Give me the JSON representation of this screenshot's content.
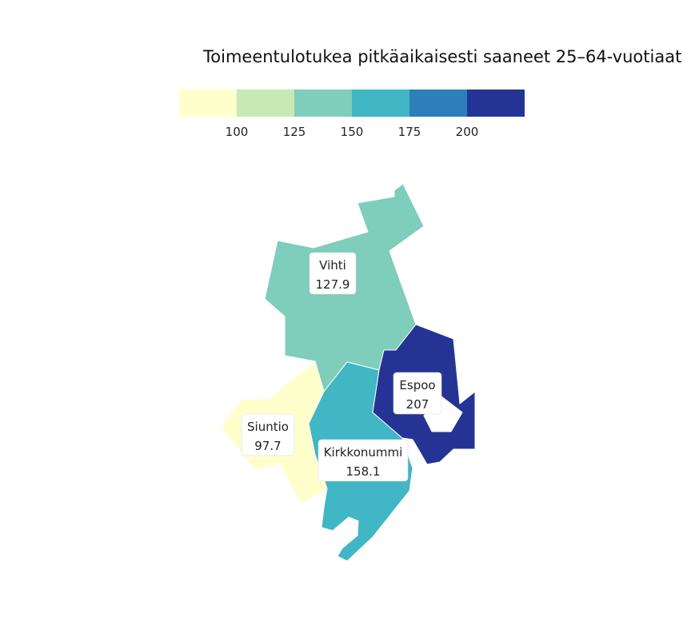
{
  "title": "Toimeentulotukea pitkäaikaisesti saaneet 25–64-vuotiaat",
  "legend": {
    "colors": [
      "#ffffcc",
      "#c7e9b4",
      "#7fcdbb",
      "#41b6c4",
      "#2c7fb8",
      "#253494"
    ],
    "ticks": [
      "100",
      "125",
      "150",
      "175",
      "200"
    ],
    "breaks": [
      100,
      125,
      150,
      175,
      200
    ]
  },
  "regions": [
    {
      "name": "Vihti",
      "value": 127.9,
      "value_label": "127.9",
      "color": "#7fcdbb"
    },
    {
      "name": "Siuntio",
      "value": 97.7,
      "value_label": "97.7",
      "color": "#ffffcc"
    },
    {
      "name": "Kirkkonummi",
      "value": 158.1,
      "value_label": "158.1",
      "color": "#41b6c4"
    },
    {
      "name": "Espoo",
      "value": 207,
      "value_label": "207",
      "color": "#253494"
    }
  ]
}
